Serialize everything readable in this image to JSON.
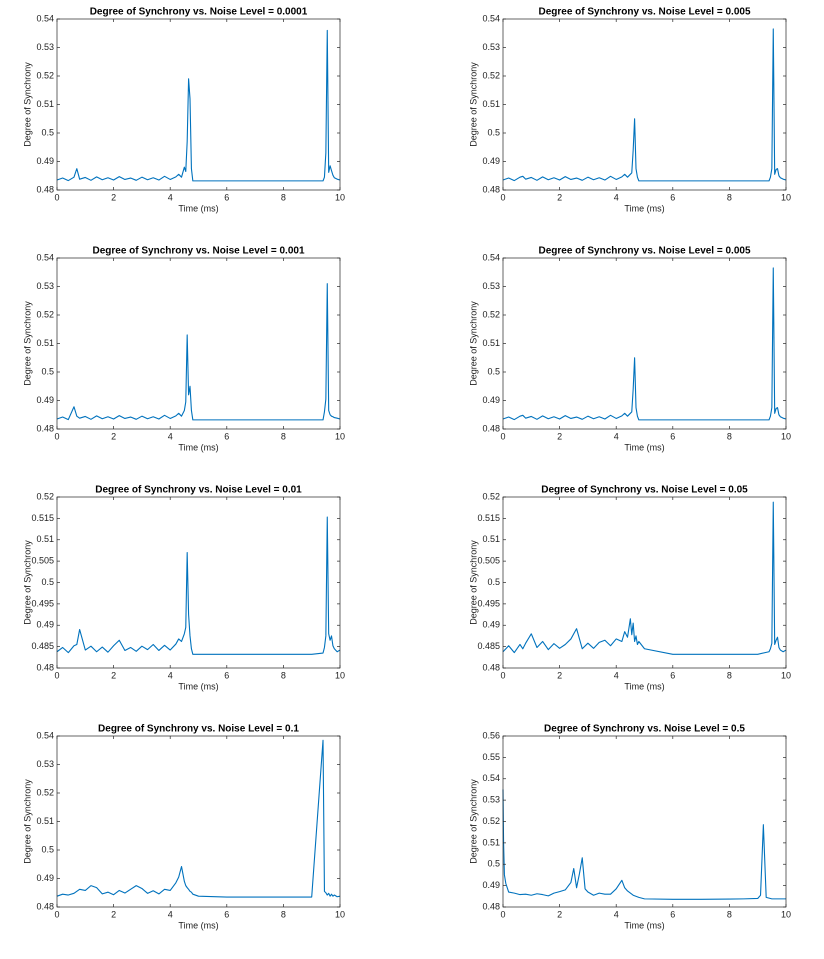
{
  "chart_data": [
    {
      "type": "line",
      "title": "Degree of Synchrony vs. Noise Level = 0.0001",
      "xlabel": "Time (ms)",
      "ylabel": "Degree of Synchrony",
      "color": "#0072bd",
      "x": [
        0,
        0.2,
        0.4,
        0.6,
        0.7,
        0.8,
        1.0,
        1.2,
        1.4,
        1.6,
        1.8,
        2.0,
        2.2,
        2.4,
        2.6,
        2.8,
        3.0,
        3.2,
        3.4,
        3.6,
        3.8,
        4.0,
        4.2,
        4.3,
        4.4,
        4.5,
        4.55,
        4.6,
        4.65,
        4.7,
        4.75,
        4.8,
        5.0,
        6.0,
        7.0,
        8.0,
        9.0,
        9.4,
        9.45,
        9.5,
        9.55,
        9.6,
        9.65,
        9.7,
        9.75,
        9.8,
        9.9,
        10
      ],
      "values": [
        0.4835,
        0.4842,
        0.4833,
        0.4845,
        0.4875,
        0.4838,
        0.4844,
        0.4834,
        0.4846,
        0.4836,
        0.4843,
        0.4835,
        0.4847,
        0.4837,
        0.4842,
        0.4834,
        0.4845,
        0.4836,
        0.4843,
        0.4835,
        0.4848,
        0.4837,
        0.4846,
        0.4855,
        0.4845,
        0.488,
        0.4865,
        0.497,
        0.519,
        0.512,
        0.4875,
        0.4832,
        0.4832,
        0.4832,
        0.4832,
        0.4832,
        0.4832,
        0.4832,
        0.4845,
        0.493,
        0.536,
        0.4862,
        0.4885,
        0.4868,
        0.4852,
        0.4843,
        0.4838,
        0.4835
      ],
      "xlim": [
        0,
        10
      ],
      "xticks": [
        0,
        2,
        4,
        6,
        8,
        10
      ],
      "ylim": [
        0.48,
        0.54
      ],
      "yticks": [
        0.48,
        0.49,
        0.5,
        0.51,
        0.52,
        0.53,
        0.54
      ]
    },
    {
      "type": "line",
      "title": "Degree of Synchrony vs. Noise Level = 0.005",
      "xlabel": "Time (ms)",
      "ylabel": "Degree of Synchrony",
      "color": "#0072bd",
      "x": [
        0,
        0.2,
        0.4,
        0.6,
        0.7,
        0.8,
        1.0,
        1.2,
        1.4,
        1.6,
        1.8,
        2.0,
        2.2,
        2.4,
        2.6,
        2.8,
        3.0,
        3.2,
        3.4,
        3.6,
        3.8,
        4.0,
        4.2,
        4.3,
        4.4,
        4.5,
        4.55,
        4.6,
        4.65,
        4.7,
        4.75,
        4.8,
        5.0,
        6.0,
        7.0,
        8.0,
        9.0,
        9.4,
        9.45,
        9.5,
        9.55,
        9.6,
        9.65,
        9.7,
        9.75,
        9.8,
        9.9,
        10
      ],
      "values": [
        0.4835,
        0.4842,
        0.4833,
        0.4845,
        0.4848,
        0.4838,
        0.4844,
        0.4834,
        0.4846,
        0.4836,
        0.4843,
        0.4835,
        0.4847,
        0.4837,
        0.4842,
        0.4834,
        0.4845,
        0.4836,
        0.4843,
        0.4835,
        0.4848,
        0.4837,
        0.4846,
        0.4855,
        0.4845,
        0.4855,
        0.486,
        0.494,
        0.505,
        0.4875,
        0.4845,
        0.4832,
        0.4832,
        0.4832,
        0.4832,
        0.4832,
        0.4832,
        0.4832,
        0.4845,
        0.4875,
        0.5365,
        0.4855,
        0.4872,
        0.4875,
        0.485,
        0.4843,
        0.4838,
        0.4835
      ],
      "xlim": [
        0,
        10
      ],
      "xticks": [
        0,
        2,
        4,
        6,
        8,
        10
      ],
      "ylim": [
        0.48,
        0.54
      ],
      "yticks": [
        0.48,
        0.49,
        0.5,
        0.51,
        0.52,
        0.53,
        0.54
      ]
    },
    {
      "type": "line",
      "title": "Degree of Synchrony vs. Noise Level = 0.001",
      "xlabel": "Time (ms)",
      "ylabel": "Degree of Synchrony",
      "color": "#0072bd",
      "x": [
        0,
        0.2,
        0.4,
        0.6,
        0.7,
        0.8,
        1.0,
        1.2,
        1.4,
        1.6,
        1.8,
        2.0,
        2.2,
        2.4,
        2.6,
        2.8,
        3.0,
        3.2,
        3.4,
        3.6,
        3.8,
        4.0,
        4.2,
        4.3,
        4.4,
        4.5,
        4.55,
        4.6,
        4.65,
        4.7,
        4.75,
        4.8,
        5.0,
        6.0,
        7.0,
        8.0,
        9.0,
        9.4,
        9.45,
        9.5,
        9.55,
        9.6,
        9.65,
        9.7,
        9.75,
        9.8,
        9.9,
        10
      ],
      "values": [
        0.4835,
        0.4842,
        0.4833,
        0.4878,
        0.4845,
        0.4838,
        0.4844,
        0.4834,
        0.4846,
        0.4836,
        0.4843,
        0.4835,
        0.4847,
        0.4837,
        0.4842,
        0.4834,
        0.4845,
        0.4836,
        0.4843,
        0.4835,
        0.4848,
        0.4837,
        0.4846,
        0.4855,
        0.4845,
        0.4865,
        0.4895,
        0.513,
        0.492,
        0.495,
        0.4865,
        0.4832,
        0.4832,
        0.4832,
        0.4832,
        0.4832,
        0.4832,
        0.4832,
        0.486,
        0.4905,
        0.531,
        0.4865,
        0.485,
        0.4845,
        0.4843,
        0.484,
        0.4838,
        0.4835
      ],
      "xlim": [
        0,
        10
      ],
      "xticks": [
        0,
        2,
        4,
        6,
        8,
        10
      ],
      "ylim": [
        0.48,
        0.54
      ],
      "yticks": [
        0.48,
        0.49,
        0.5,
        0.51,
        0.52,
        0.53,
        0.54
      ]
    },
    {
      "type": "line",
      "title": "Degree of Synchrony vs. Noise Level = 0.005",
      "xlabel": "Time (ms)",
      "ylabel": "Degree of Synchrony",
      "color": "#0072bd",
      "x": [
        0,
        0.2,
        0.4,
        0.6,
        0.7,
        0.8,
        1.0,
        1.2,
        1.4,
        1.6,
        1.8,
        2.0,
        2.2,
        2.4,
        2.6,
        2.8,
        3.0,
        3.2,
        3.4,
        3.6,
        3.8,
        4.0,
        4.2,
        4.3,
        4.4,
        4.5,
        4.55,
        4.6,
        4.65,
        4.7,
        4.75,
        4.8,
        5.0,
        6.0,
        7.0,
        8.0,
        9.0,
        9.4,
        9.45,
        9.5,
        9.55,
        9.6,
        9.65,
        9.7,
        9.75,
        9.8,
        9.9,
        10
      ],
      "values": [
        0.4835,
        0.4842,
        0.4833,
        0.4845,
        0.4848,
        0.4838,
        0.4844,
        0.4834,
        0.4846,
        0.4836,
        0.4843,
        0.4835,
        0.4847,
        0.4837,
        0.4842,
        0.4834,
        0.4845,
        0.4836,
        0.4843,
        0.4835,
        0.4848,
        0.4837,
        0.4846,
        0.4855,
        0.4845,
        0.4855,
        0.486,
        0.494,
        0.505,
        0.4875,
        0.4845,
        0.4832,
        0.4832,
        0.4832,
        0.4832,
        0.4832,
        0.4832,
        0.4832,
        0.4845,
        0.4875,
        0.5365,
        0.4855,
        0.4872,
        0.4875,
        0.485,
        0.4843,
        0.4838,
        0.4835
      ],
      "xlim": [
        0,
        10
      ],
      "xticks": [
        0,
        2,
        4,
        6,
        8,
        10
      ],
      "ylim": [
        0.48,
        0.54
      ],
      "yticks": [
        0.48,
        0.49,
        0.5,
        0.51,
        0.52,
        0.53,
        0.54
      ]
    },
    {
      "type": "line",
      "title": "Degree of Synchrony vs. Noise Level = 0.01",
      "xlabel": "Time (ms)",
      "ylabel": "Degree of Synchrony",
      "color": "#0072bd",
      "x": [
        0,
        0.2,
        0.4,
        0.6,
        0.7,
        0.8,
        1.0,
        1.2,
        1.4,
        1.6,
        1.8,
        2.0,
        2.2,
        2.4,
        2.6,
        2.8,
        3.0,
        3.2,
        3.4,
        3.6,
        3.8,
        4.0,
        4.2,
        4.3,
        4.4,
        4.5,
        4.55,
        4.6,
        4.65,
        4.7,
        4.75,
        4.8,
        5.0,
        6.0,
        7.0,
        8.0,
        9.0,
        9.4,
        9.45,
        9.5,
        9.55,
        9.6,
        9.65,
        9.7,
        9.75,
        9.8,
        9.9,
        10
      ],
      "values": [
        0.4838,
        0.4848,
        0.4836,
        0.4852,
        0.4855,
        0.489,
        0.4842,
        0.4851,
        0.4838,
        0.4849,
        0.4837,
        0.4852,
        0.4865,
        0.4841,
        0.4848,
        0.4839,
        0.4851,
        0.4843,
        0.4855,
        0.4841,
        0.4853,
        0.4842,
        0.4856,
        0.4868,
        0.4862,
        0.488,
        0.4895,
        0.507,
        0.4925,
        0.4875,
        0.4845,
        0.4832,
        0.4832,
        0.4832,
        0.4832,
        0.4832,
        0.4832,
        0.4835,
        0.4848,
        0.4875,
        0.5153,
        0.488,
        0.4865,
        0.4875,
        0.4852,
        0.4845,
        0.4838,
        0.4842
      ],
      "xlim": [
        0,
        10
      ],
      "xticks": [
        0,
        2,
        4,
        6,
        8,
        10
      ],
      "ylim": [
        0.48,
        0.52
      ],
      "yticks": [
        0.48,
        0.485,
        0.49,
        0.495,
        0.5,
        0.505,
        0.51,
        0.515,
        0.52
      ]
    },
    {
      "type": "line",
      "title": "Degree of Synchrony vs. Noise Level = 0.05",
      "xlabel": "Time (ms)",
      "ylabel": "Degree of Synchrony",
      "color": "#0072bd",
      "x": [
        0,
        0.2,
        0.4,
        0.6,
        0.7,
        0.8,
        1.0,
        1.2,
        1.4,
        1.6,
        1.8,
        2.0,
        2.2,
        2.4,
        2.6,
        2.8,
        3.0,
        3.2,
        3.4,
        3.6,
        3.8,
        4.0,
        4.2,
        4.3,
        4.4,
        4.5,
        4.55,
        4.6,
        4.65,
        4.7,
        4.75,
        4.8,
        5.0,
        6.0,
        7.0,
        8.0,
        9.0,
        9.4,
        9.45,
        9.5,
        9.55,
        9.6,
        9.65,
        9.7,
        9.75,
        9.8,
        9.9,
        10
      ],
      "values": [
        0.4838,
        0.4852,
        0.4836,
        0.4855,
        0.4845,
        0.4858,
        0.488,
        0.4848,
        0.4862,
        0.4843,
        0.4857,
        0.4846,
        0.4855,
        0.4868,
        0.4892,
        0.4845,
        0.4858,
        0.4846,
        0.486,
        0.4865,
        0.4852,
        0.4868,
        0.4862,
        0.4885,
        0.4872,
        0.4915,
        0.4878,
        0.4905,
        0.4862,
        0.4875,
        0.4855,
        0.4862,
        0.4845,
        0.4832,
        0.4832,
        0.4832,
        0.4832,
        0.4838,
        0.4845,
        0.4858,
        0.5188,
        0.4855,
        0.4865,
        0.4872,
        0.4848,
        0.4842,
        0.4838,
        0.4842
      ],
      "xlim": [
        0,
        10
      ],
      "xticks": [
        0,
        2,
        4,
        6,
        8,
        10
      ],
      "ylim": [
        0.48,
        0.52
      ],
      "yticks": [
        0.48,
        0.485,
        0.49,
        0.495,
        0.5,
        0.505,
        0.51,
        0.515,
        0.52
      ]
    },
    {
      "type": "line",
      "title": "Degree of Synchrony vs. Noise Level = 0.1",
      "xlabel": "Time (ms)",
      "ylabel": "Degree of Synchrony",
      "color": "#0072bd",
      "x": [
        0,
        0.2,
        0.4,
        0.6,
        0.7,
        0.8,
        1.0,
        1.2,
        1.4,
        1.6,
        1.8,
        2.0,
        2.2,
        2.4,
        2.6,
        2.8,
        3.0,
        3.2,
        3.4,
        3.6,
        3.8,
        4.0,
        4.2,
        4.3,
        4.4,
        4.5,
        4.55,
        4.6,
        4.65,
        4.7,
        4.75,
        4.8,
        5.0,
        6.0,
        7.0,
        8.0,
        9.0,
        9.4,
        9.45,
        9.5,
        9.55,
        9.6,
        9.65,
        9.7,
        9.75,
        9.8,
        9.9,
        10
      ],
      "values": [
        0.4838,
        0.4845,
        0.4842,
        0.4848,
        0.4855,
        0.4862,
        0.4858,
        0.4875,
        0.4868,
        0.4846,
        0.4852,
        0.4843,
        0.4858,
        0.4849,
        0.4862,
        0.4875,
        0.4865,
        0.4848,
        0.4857,
        0.4846,
        0.4862,
        0.4858,
        0.4885,
        0.4905,
        0.4942,
        0.489,
        0.4875,
        0.4868,
        0.4862,
        0.4855,
        0.4852,
        0.4845,
        0.4838,
        0.4835,
        0.4835,
        0.4835,
        0.4835,
        0.5385,
        0.4855,
        0.485,
        0.4842,
        0.4848,
        0.4838,
        0.4845,
        0.4838,
        0.4842,
        0.4836,
        0.4838
      ],
      "xlim": [
        0,
        10
      ],
      "xticks": [
        0,
        2,
        4,
        6,
        8,
        10
      ],
      "ylim": [
        0.48,
        0.54
      ],
      "yticks": [
        0.48,
        0.49,
        0.5,
        0.51,
        0.52,
        0.53,
        0.54
      ]
    },
    {
      "type": "line",
      "title": "Degree of Synchrony vs. Noise Level = 0.5",
      "xlabel": "Time (ms)",
      "ylabel": "Degree of Synchrony",
      "color": "#0072bd",
      "x": [
        0,
        0.02,
        0.05,
        0.1,
        0.2,
        0.4,
        0.6,
        0.8,
        1.0,
        1.2,
        1.4,
        1.6,
        1.8,
        2.0,
        2.2,
        2.4,
        2.5,
        2.6,
        2.7,
        2.8,
        2.9,
        3.0,
        3.2,
        3.4,
        3.6,
        3.8,
        4.0,
        4.2,
        4.3,
        4.4,
        4.6,
        4.8,
        5.0,
        6.0,
        7.0,
        8.0,
        8.5,
        9.0,
        9.1,
        9.2,
        9.3,
        9.5,
        10
      ],
      "values": [
        0.535,
        0.51,
        0.495,
        0.491,
        0.487,
        0.4865,
        0.4858,
        0.486,
        0.4855,
        0.4862,
        0.4858,
        0.4852,
        0.4865,
        0.4872,
        0.488,
        0.4915,
        0.498,
        0.489,
        0.4955,
        0.503,
        0.4885,
        0.487,
        0.4855,
        0.4865,
        0.486,
        0.486,
        0.4885,
        0.4925,
        0.489,
        0.4875,
        0.4855,
        0.4845,
        0.4838,
        0.4836,
        0.4836,
        0.4837,
        0.4838,
        0.484,
        0.4855,
        0.5185,
        0.4845,
        0.4838,
        0.4838
      ],
      "xlim": [
        0,
        10
      ],
      "xticks": [
        0,
        2,
        4,
        6,
        8,
        10
      ],
      "ylim": [
        0.48,
        0.56
      ],
      "yticks": [
        0.48,
        0.49,
        0.5,
        0.51,
        0.52,
        0.53,
        0.54,
        0.55,
        0.56
      ]
    }
  ]
}
